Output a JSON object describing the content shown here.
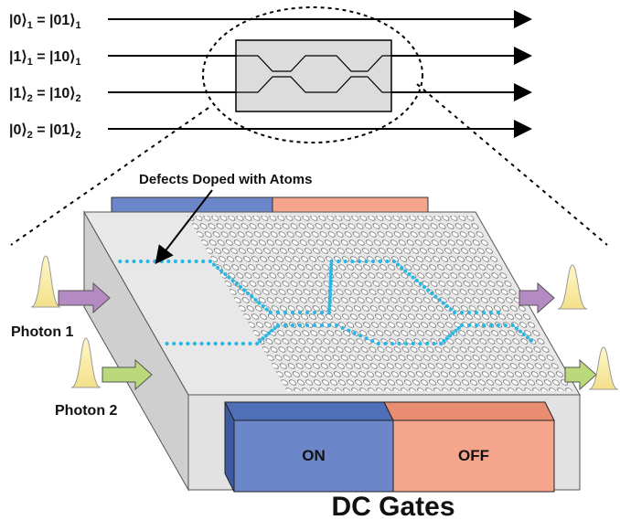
{
  "circuit": {
    "rows": [
      {
        "lhs": "|0⟩",
        "lhs_sub": "1",
        "rhs": "|01⟩",
        "rhs_sub": "1"
      },
      {
        "lhs": "|1⟩",
        "lhs_sub": "1",
        "rhs": "|10⟩",
        "rhs_sub": "1"
      },
      {
        "lhs": "|1⟩",
        "lhs_sub": "2",
        "rhs": "|10⟩",
        "rhs_sub": "2"
      },
      {
        "lhs": "|0⟩",
        "lhs_sub": "2",
        "rhs": "|01⟩",
        "rhs_sub": "2"
      }
    ]
  },
  "labels": {
    "defects": "Defects Doped with Atoms",
    "photon1": "Photon 1",
    "photon2": "Photon 2",
    "gate_on": "ON",
    "gate_off": "OFF",
    "dc_gates": "DC Gates"
  },
  "colors": {
    "gate_on": "#6b86c9",
    "gate_off": "#f4a58c",
    "defect": "#29b7e6",
    "photon_pulse": "#fff2a8",
    "arrow_photon1": "#b48ac2",
    "arrow_photon2": "#b9d97a",
    "slab_top": "#e3e3e3",
    "slab_side": "#d4d4d4"
  }
}
